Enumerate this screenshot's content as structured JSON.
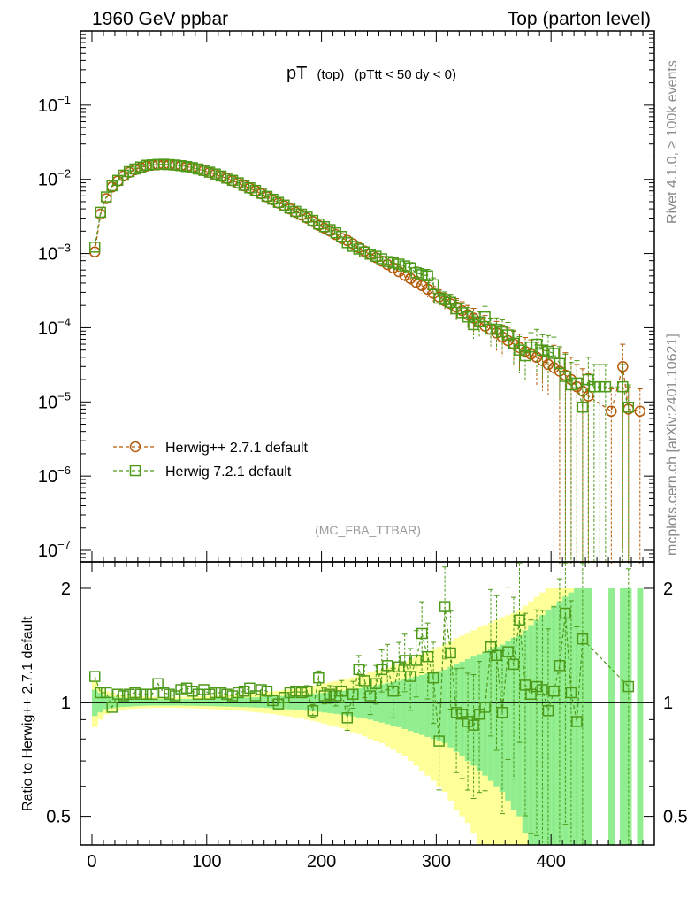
{
  "header": {
    "left": "1960 GeV ppbar",
    "right": "Top (parton level)"
  },
  "plot_title": {
    "main": "pT",
    "sub1": "(top)",
    "sub2": "(pTtt < 50 dy < 0)"
  },
  "side_labels": {
    "rivet": "Rivet 4.1.0, ≥ 100k events",
    "mcplots": "mcplots.cern.ch [arXiv:2401.10621]"
  },
  "analysis_tag": "(MC_FBA_TTBAR)",
  "chart_data": [
    {
      "type": "line",
      "title": "pT (top) (pTtt < 50 dy < 0)",
      "yscale": "log",
      "xlim": [
        -10,
        490
      ],
      "ylim": [
        7e-08,
        1.0
      ],
      "y_ticks": [
        {
          "v": 1e-07,
          "e": "−7"
        },
        {
          "v": 1e-06,
          "e": "−6"
        },
        {
          "v": 1e-05,
          "e": "−5"
        },
        {
          "v": 0.0001,
          "e": "−4"
        },
        {
          "v": 0.001,
          "e": "−3"
        },
        {
          "v": 0.01,
          "e": "−2"
        },
        {
          "v": 0.1,
          "e": "−1"
        }
      ],
      "legend": [
        {
          "label": "Herwig++ 2.7.1 default",
          "color": "#b35806",
          "marker": "circle"
        },
        {
          "label": "Herwig 7.2.1 default",
          "color": "#4d9a19",
          "marker": "square"
        }
      ],
      "series": [
        {
          "name": "Herwig++ 2.7.1 default",
          "color": "#b35806",
          "marker": "circle",
          "x": [
            2.5,
            7.5,
            12.5,
            17.5,
            22.5,
            27.5,
            32.5,
            37.5,
            42.5,
            47.5,
            52.5,
            57.5,
            62.5,
            67.5,
            72.5,
            77.5,
            82.5,
            87.5,
            92.5,
            97.5,
            102.5,
            107.5,
            112.5,
            117.5,
            122.5,
            127.5,
            132.5,
            137.5,
            142.5,
            147.5,
            152.5,
            157.5,
            162.5,
            167.5,
            172.5,
            177.5,
            182.5,
            187.5,
            192.5,
            197.5,
            202.5,
            207.5,
            212.5,
            217.5,
            222.5,
            227.5,
            232.5,
            237.5,
            242.5,
            247.5,
            252.5,
            257.5,
            262.5,
            267.5,
            272.5,
            277.5,
            282.5,
            287.5,
            292.5,
            297.5,
            302.5,
            307.5,
            312.5,
            317.5,
            322.5,
            327.5,
            332.5,
            337.5,
            342.5,
            347.5,
            352.5,
            357.5,
            362.5,
            367.5,
            372.5,
            377.5,
            382.5,
            387.5,
            392.5,
            397.5,
            402.5,
            407.5,
            412.5,
            417.5,
            422.5,
            427.5,
            432.5,
            452.5,
            462.5,
            467.5,
            477.5
          ],
          "y": [
            0.00105,
            0.0034,
            0.0055,
            0.0079,
            0.0095,
            0.0111,
            0.0124,
            0.0135,
            0.0144,
            0.0151,
            0.0155,
            0.0157,
            0.0158,
            0.0157,
            0.0155,
            0.0152,
            0.0148,
            0.0143,
            0.0137,
            0.0131,
            0.0124,
            0.0117,
            0.011,
            0.0103,
            0.0096,
            0.0089,
            0.0082,
            0.0076,
            0.007,
            0.0064,
            0.0058,
            0.0053,
            0.0048,
            0.0044,
            0.004,
            0.0036,
            0.0033,
            0.003,
            0.0027,
            0.0024,
            0.0022,
            0.002,
            0.0018,
            0.0016,
            0.0015,
            0.00135,
            0.0012,
            0.00108,
            0.00098,
            0.00088,
            0.00079,
            0.00071,
            0.00064,
            0.00057,
            0.00051,
            0.00046,
            0.00041,
            0.00037,
            0.00033,
            0.00029,
            0.00026,
            0.00023,
            0.00021,
            0.00019,
            0.00017,
            0.00015,
            0.000135,
            0.00012,
            0.000105,
            9.5e-05,
            8.5e-05,
            7.5e-05,
            6.7e-05,
            6e-05,
            5.4e-05,
            4.8e-05,
            4.4e-05,
            4e-05,
            3.6e-05,
            3.2e-05,
            2.9e-05,
            2.6e-05,
            2.3e-05,
            2e-05,
            1.6e-05,
            1.4e-05,
            1.2e-05,
            7.5e-06,
            3e-05,
            8e-06,
            7.5e-06
          ]
        },
        {
          "name": "Herwig 7.2.1 default",
          "color": "#4d9a19",
          "marker": "square",
          "x": [
            2.5,
            7.5,
            12.5,
            17.5,
            22.5,
            27.5,
            32.5,
            37.5,
            42.5,
            47.5,
            52.5,
            57.5,
            62.5,
            67.5,
            72.5,
            77.5,
            82.5,
            87.5,
            92.5,
            97.5,
            102.5,
            107.5,
            112.5,
            117.5,
            122.5,
            127.5,
            132.5,
            137.5,
            142.5,
            147.5,
            152.5,
            157.5,
            162.5,
            167.5,
            172.5,
            177.5,
            182.5,
            187.5,
            192.5,
            197.5,
            202.5,
            207.5,
            212.5,
            217.5,
            222.5,
            227.5,
            232.5,
            237.5,
            242.5,
            247.5,
            252.5,
            257.5,
            262.5,
            267.5,
            272.5,
            277.5,
            282.5,
            287.5,
            292.5,
            297.5,
            302.5,
            307.5,
            312.5,
            317.5,
            322.5,
            327.5,
            332.5,
            337.5,
            342.5,
            347.5,
            352.5,
            357.5,
            362.5,
            367.5,
            372.5,
            377.5,
            382.5,
            387.5,
            392.5,
            397.5,
            402.5,
            407.5,
            412.5,
            417.5,
            422.5,
            427.5,
            432.5,
            437.5,
            442.5,
            447.5,
            462.5,
            467.5
          ],
          "y": [
            0.00122,
            0.0036,
            0.0058,
            0.0082,
            0.0097,
            0.0114,
            0.0127,
            0.0138,
            0.0147,
            0.0155,
            0.0157,
            0.0159,
            0.016,
            0.0158,
            0.0156,
            0.0153,
            0.0149,
            0.0144,
            0.0138,
            0.0132,
            0.0125,
            0.0118,
            0.0111,
            0.0104,
            0.0097,
            0.009,
            0.0083,
            0.0077,
            0.0071,
            0.0065,
            0.0059,
            0.0054,
            0.0049,
            0.0045,
            0.0041,
            0.0037,
            0.0034,
            0.0031,
            0.0028,
            0.0025,
            0.0023,
            0.0021,
            0.0019,
            0.0017,
            0.0014,
            0.00125,
            0.00115,
            0.00105,
            0.00098,
            0.00092,
            0.00085,
            0.00078,
            0.00075,
            0.00072,
            0.00068,
            0.00064,
            0.00055,
            0.00052,
            0.0005,
            0.00038,
            0.00025,
            0.00024,
            0.00022,
            0.00018,
            0.00016,
            0.00014,
            0.00011,
            0.00012,
            0.00014,
            9.6e-05,
            9.5e-05,
            8.8e-05,
            8e-05,
            6.2e-05,
            5e-05,
            4.2e-05,
            5.5e-05,
            6e-05,
            5e-05,
            4.8e-05,
            4.5e-05,
            3.3e-05,
            2.2e-05,
            1.7e-05,
            1.8e-05,
            8.5e-06,
            2e-05,
            1.6e-05,
            1.6e-05,
            1.6e-05,
            1.6e-05,
            8.5e-06
          ]
        }
      ]
    },
    {
      "type": "line",
      "title": "",
      "ylabel": "Ratio to Herwig++ 2.7.1 default",
      "xlim": [
        -10,
        490
      ],
      "ylim": [
        0.42,
        2.35
      ],
      "yscale": "log",
      "y_ticks": [
        0.5,
        1,
        2
      ],
      "y_tick_labels": [
        "0.5",
        "1",
        "2"
      ],
      "x_ticks": [
        0,
        100,
        200,
        300,
        400
      ],
      "x_tick_labels": [
        "0",
        "100",
        "200",
        "300",
        "400"
      ],
      "bands": {
        "x": [
          2.5,
          7.5,
          12.5,
          17.5,
          22.5,
          27.5,
          32.5,
          37.5,
          42.5,
          47.5,
          52.5,
          57.5,
          62.5,
          67.5,
          72.5,
          77.5,
          82.5,
          87.5,
          92.5,
          97.5,
          102.5,
          107.5,
          112.5,
          117.5,
          122.5,
          127.5,
          132.5,
          137.5,
          142.5,
          147.5,
          152.5,
          157.5,
          162.5,
          167.5,
          172.5,
          177.5,
          182.5,
          187.5,
          192.5,
          197.5,
          202.5,
          207.5,
          212.5,
          217.5,
          222.5,
          227.5,
          232.5,
          237.5,
          242.5,
          247.5,
          252.5,
          257.5,
          262.5,
          267.5,
          272.5,
          277.5,
          282.5,
          287.5,
          292.5,
          297.5,
          302.5,
          307.5,
          312.5,
          317.5,
          322.5,
          327.5,
          332.5,
          337.5,
          342.5,
          347.5,
          352.5,
          357.5,
          362.5,
          367.5,
          372.5,
          377.5,
          382.5,
          387.5,
          392.5,
          397.5,
          402.5,
          407.5,
          412.5,
          417.5,
          422.5,
          427.5,
          432.5,
          437.5,
          442.5,
          447.5,
          452.5,
          457.5,
          462.5,
          467.5,
          472.5,
          477.5
        ],
        "inner": [
          0.08,
          0.06,
          0.04,
          0.035,
          0.03,
          0.028,
          0.026,
          0.024,
          0.022,
          0.021,
          0.02,
          0.02,
          0.02,
          0.02,
          0.02,
          0.02,
          0.021,
          0.021,
          0.022,
          0.022,
          0.023,
          0.024,
          0.025,
          0.026,
          0.027,
          0.028,
          0.029,
          0.03,
          0.031,
          0.032,
          0.034,
          0.036,
          0.038,
          0.04,
          0.042,
          0.045,
          0.048,
          0.05,
          0.053,
          0.056,
          0.06,
          0.064,
          0.068,
          0.072,
          0.077,
          0.082,
          0.088,
          0.094,
          0.1,
          0.108,
          0.116,
          0.124,
          0.132,
          0.14,
          0.15,
          0.16,
          0.17,
          0.18,
          0.19,
          0.2,
          0.21,
          0.22,
          0.24,
          0.26,
          0.28,
          0.3,
          0.32,
          0.34,
          0.36,
          0.38,
          0.4,
          0.42,
          0.45,
          0.48,
          0.5,
          0.55,
          0.6,
          0.65,
          0.7,
          0.75,
          0.8,
          0.85,
          0.9,
          0.95,
          1.0,
          1.0,
          1.0,
          0,
          0,
          0,
          1.0,
          0,
          1.0,
          1.0,
          0,
          1.0
        ],
        "outer": [
          0.14,
          0.1,
          0.07,
          0.06,
          0.05,
          0.045,
          0.04,
          0.038,
          0.036,
          0.035,
          0.034,
          0.033,
          0.033,
          0.033,
          0.033,
          0.034,
          0.035,
          0.036,
          0.037,
          0.038,
          0.04,
          0.041,
          0.043,
          0.045,
          0.047,
          0.049,
          0.052,
          0.055,
          0.058,
          0.061,
          0.065,
          0.069,
          0.073,
          0.078,
          0.083,
          0.088,
          0.094,
          0.1,
          0.107,
          0.114,
          0.122,
          0.13,
          0.138,
          0.147,
          0.156,
          0.166,
          0.176,
          0.187,
          0.2,
          0.21,
          0.22,
          0.235,
          0.25,
          0.265,
          0.28,
          0.3,
          0.32,
          0.34,
          0.36,
          0.38,
          0.4,
          0.42,
          0.45,
          0.48,
          0.5,
          0.52,
          0.55,
          0.58,
          0.6,
          0.62,
          0.65,
          0.68,
          0.7,
          0.72,
          0.75,
          0.8,
          0.85,
          0.9,
          0.95,
          1.0,
          1.0,
          1.0,
          1.0,
          1.0,
          1.0,
          1.0,
          1.0,
          0,
          0,
          0,
          1.0,
          0,
          1.0,
          1.0,
          0,
          1.0
        ]
      },
      "series": [
        {
          "name": "Herwig 7.2.1 default",
          "color": "#4d9a19",
          "marker": "square",
          "x": [
            2.5,
            7.5,
            12.5,
            17.5,
            22.5,
            27.5,
            32.5,
            37.5,
            42.5,
            47.5,
            52.5,
            57.5,
            62.5,
            67.5,
            72.5,
            77.5,
            82.5,
            87.5,
            92.5,
            97.5,
            102.5,
            107.5,
            112.5,
            117.5,
            122.5,
            127.5,
            132.5,
            137.5,
            142.5,
            147.5,
            152.5,
            157.5,
            162.5,
            167.5,
            172.5,
            177.5,
            182.5,
            187.5,
            192.5,
            197.5,
            202.5,
            207.5,
            212.5,
            217.5,
            222.5,
            227.5,
            232.5,
            237.5,
            242.5,
            247.5,
            252.5,
            257.5,
            262.5,
            267.5,
            272.5,
            277.5,
            282.5,
            287.5,
            292.5,
            297.5,
            302.5,
            307.5,
            312.5,
            317.5,
            322.5,
            327.5,
            332.5,
            337.5,
            342.5,
            347.5,
            352.5,
            357.5,
            362.5,
            367.5,
            372.5,
            377.5,
            382.5,
            387.5,
            392.5,
            397.5,
            402.5,
            407.5,
            412.5,
            417.5,
            422.5,
            427.5,
            467.5
          ],
          "y": [
            1.17,
            1.06,
            1.06,
            0.97,
            1.05,
            1.04,
            1.05,
            1.06,
            1.05,
            1.05,
            1.05,
            1.12,
            1.06,
            1.05,
            1.04,
            1.08,
            1.09,
            1.07,
            1.05,
            1.08,
            1.05,
            1.06,
            1.06,
            1.05,
            1.04,
            1.06,
            1.07,
            1.09,
            1.04,
            1.08,
            1.07,
            1.01,
            0.99,
            1.03,
            1.06,
            1.07,
            1.06,
            1.07,
            0.95,
            1.16,
            1.04,
            1.05,
            1.04,
            1.07,
            0.91,
            1.05,
            1.22,
            1.14,
            1.04,
            1.12,
            1.22,
            1.25,
            1.07,
            1.24,
            1.29,
            1.17,
            1.29,
            1.52,
            1.32,
            1.16,
            0.79,
            1.79,
            1.35,
            0.94,
            0.93,
            0.89,
            0.87,
            0.93,
            0.97,
            1.4,
            1.33,
            0.94,
            1.36,
            1.26,
            1.65,
            1.11,
            1.05,
            1.1,
            1.08,
            0.95,
            1.07,
            1.25,
            1.72,
            1.06,
            0.89,
            1.47,
            1.1
          ]
        }
      ]
    }
  ]
}
